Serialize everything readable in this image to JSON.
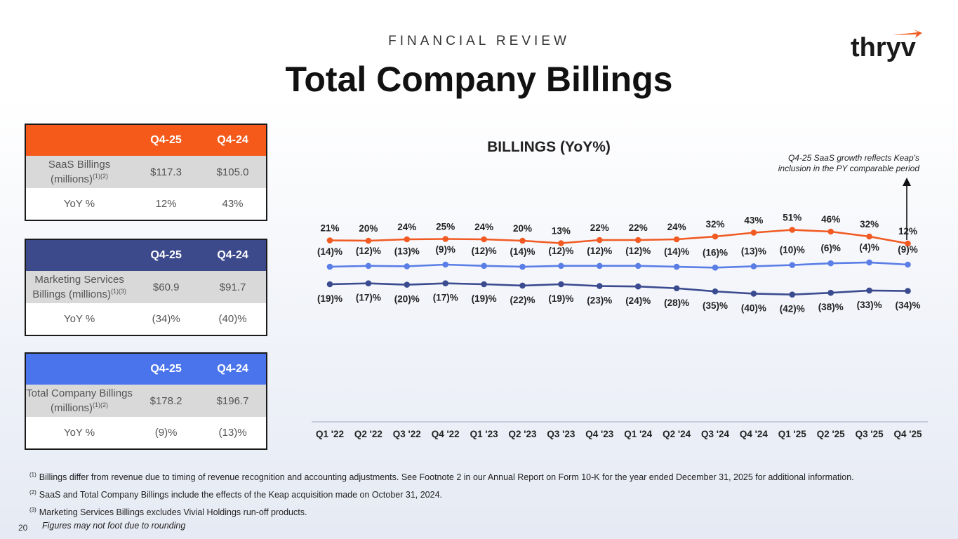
{
  "header": {
    "kicker": "FINANCIAL REVIEW",
    "title": "Total Company Billings",
    "logo_text": "thryv"
  },
  "colors": {
    "orange": "#f55a1a",
    "navy": "#3c4a8c",
    "blue": "#4a74ec",
    "saas_line": "#f15a22",
    "ms_line": "#3b4b8f",
    "total_line": "#5a7ee6"
  },
  "tables": [
    {
      "header": [
        "",
        "Q4-25",
        "Q4-24"
      ],
      "row1_label": "SaaS Billings (millions)",
      "row1_sup": "(1)(2)",
      "row1_values": [
        "$117.3",
        "$105.0"
      ],
      "row2_label": "YoY %",
      "row2_values": [
        "12%",
        "43%"
      ]
    },
    {
      "header": [
        "",
        "Q4-25",
        "Q4-24"
      ],
      "row1_label": "Marketing Services Billings (millions)",
      "row1_sup": "(1)(3)",
      "row1_values": [
        "$60.9",
        "$91.7"
      ],
      "row2_label": "YoY %",
      "row2_values": [
        "(34)%",
        "(40)%"
      ]
    },
    {
      "header": [
        "",
        "Q4-25",
        "Q4-24"
      ],
      "row1_label": "Total Company Billings (millions)",
      "row1_sup": "(1)(2)",
      "row1_values": [
        "$178.2",
        "$196.7"
      ],
      "row2_label": "YoY %",
      "row2_values": [
        "(9)%",
        "(13)%"
      ]
    }
  ],
  "chart_data": {
    "type": "line",
    "title": "BILLINGS (YoY%)",
    "annotation": "Q4-25 SaaS growth reflects Keap's inclusion in the PY comparable period",
    "categories": [
      "Q1 '22",
      "Q2 '22",
      "Q3 '22",
      "Q4 '22",
      "Q1 '23",
      "Q2 '23",
      "Q3 '23",
      "Q4 '23",
      "Q1 '24",
      "Q2 '24",
      "Q3 '24",
      "Q4 '24",
      "Q1 '25",
      "Q2 '25",
      "Q3 '25",
      "Q4 '25"
    ],
    "series": [
      {
        "name": "SaaS",
        "values": [
          21,
          20,
          24,
          25,
          24,
          20,
          13,
          22,
          22,
          24,
          32,
          43,
          51,
          46,
          32,
          12
        ],
        "labels": [
          "21%",
          "20%",
          "24%",
          "25%",
          "24%",
          "20%",
          "13%",
          "22%",
          "22%",
          "24%",
          "32%",
          "43%",
          "51%",
          "46%",
          "32%",
          "12%"
        ]
      },
      {
        "name": "Total Company",
        "values": [
          -14,
          -12,
          -13,
          -9,
          -12,
          -14,
          -12,
          -12,
          -12,
          -14,
          -16,
          -13,
          -10,
          -6,
          -4,
          -9
        ],
        "labels": [
          "(14)%",
          "(12)%",
          "(13)%",
          "(9)%",
          "(12)%",
          "(14)%",
          "(12)%",
          "(12)%",
          "(12)%",
          "(14)%",
          "(16)%",
          "(13)%",
          "(10)%",
          "(6)%",
          "(4)%",
          "(9)%"
        ]
      },
      {
        "name": "Marketing Services",
        "values": [
          -19,
          -17,
          -20,
          -17,
          -19,
          -22,
          -19,
          -23,
          -24,
          -28,
          -35,
          -40,
          -42,
          -38,
          -33,
          -34
        ],
        "labels": [
          "(19)%",
          "(17)%",
          "(20)%",
          "(17)%",
          "(19)%",
          "(22)%",
          "(19)%",
          "(23)%",
          "(24)%",
          "(28)%",
          "(35)%",
          "(40)%",
          "(42)%",
          "(38)%",
          "(33)%",
          "(34)%"
        ]
      }
    ]
  },
  "footnotes": [
    {
      "sup": "(1)",
      "text": "Billings differ from revenue due to timing of revenue recognition and accounting adjustments. See Footnote 2 in our Annual Report on Form 10-K for the year ended December 31, 2025 for additional information."
    },
    {
      "sup": "(2)",
      "text": "SaaS and Total Company Billings include the effects of the Keap acquisition made on October 31, 2024."
    },
    {
      "sup": "(3)",
      "text": "Marketing Services Billings excludes Vivial Holdings run-off products."
    }
  ],
  "footer": {
    "page_number": "20",
    "note": "Figures may not foot due to rounding"
  }
}
